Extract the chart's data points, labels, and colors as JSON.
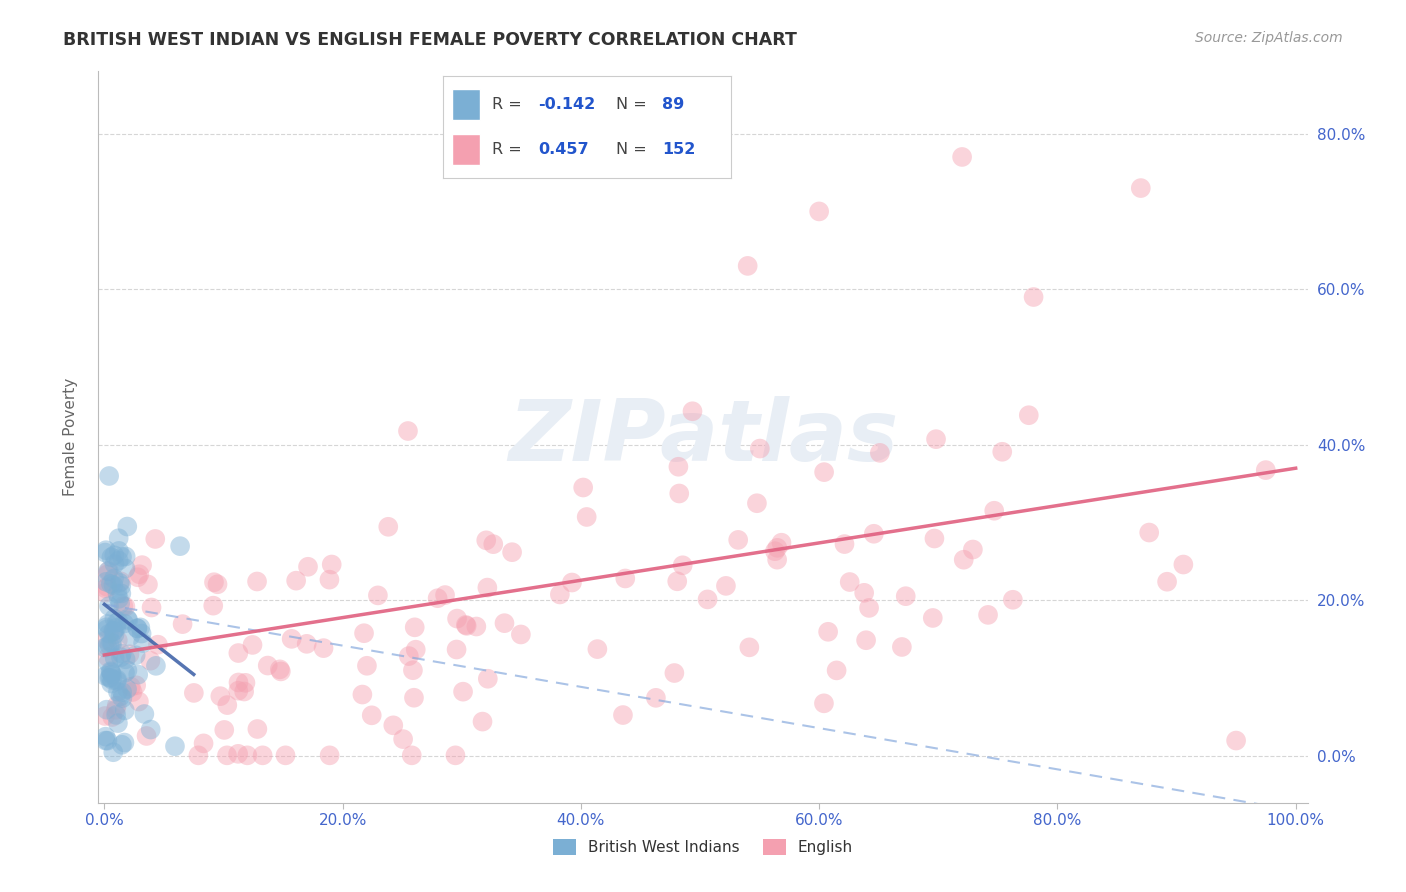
{
  "title": "BRITISH WEST INDIAN VS ENGLISH FEMALE POVERTY CORRELATION CHART",
  "source_text": "Source: ZipAtlas.com",
  "ylabel": "Female Poverty",
  "xlabel": "",
  "xlim": [
    -0.005,
    1.01
  ],
  "ylim": [
    -0.06,
    0.88
  ],
  "yticks": [
    0.0,
    0.2,
    0.4,
    0.6,
    0.8
  ],
  "ytick_labels": [
    "0.0%",
    "20.0%",
    "40.0%",
    "60.0%",
    "80.0%"
  ],
  "xticks": [
    0.0,
    0.2,
    0.4,
    0.6,
    0.8,
    1.0
  ],
  "xtick_labels": [
    "0.0%",
    "20.0%",
    "40.0%",
    "60.0%",
    "80.0%",
    "100.0%"
  ],
  "legend_r_blue": "-0.142",
  "legend_n_blue": "89",
  "legend_r_pink": "0.457",
  "legend_n_pink": "152",
  "blue_color": "#7bafd4",
  "pink_color": "#f4a0b0",
  "blue_line_color": "#4466aa",
  "blue_dash_color": "#88aadd",
  "pink_line_color": "#e06080",
  "background_color": "#ffffff",
  "grid_color": "#cccccc",
  "title_color": "#333333",
  "axis_color": "#555555",
  "tick_color": "#4466cc",
  "watermark_color": "#e8eef5",
  "blue_line": {
    "x0": 0.0,
    "x1": 0.075,
    "y0": 0.195,
    "y1": 0.105
  },
  "blue_dash_line": {
    "x0": 0.0,
    "x1": 1.0,
    "y0": 0.195,
    "y1": -0.07
  },
  "pink_line": {
    "x0": 0.0,
    "x1": 1.0,
    "y0": 0.13,
    "y1": 0.37
  }
}
